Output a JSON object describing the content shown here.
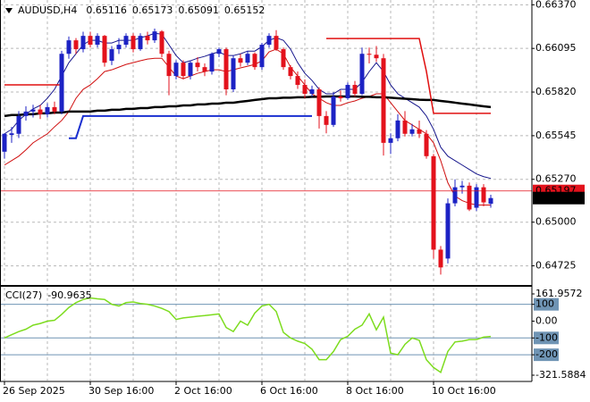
{
  "chart_data": [
    {
      "type": "candlestick",
      "title": "AUDUSD,H4",
      "categories": [
        "26 Sep 2025",
        null,
        null,
        null,
        null,
        null,
        null,
        null,
        null,
        null,
        null,
        null,
        "30 Sep 16:00",
        null,
        null,
        null,
        null,
        null,
        null,
        null,
        null,
        null,
        null,
        null,
        "2 Oct 16:00",
        null,
        null,
        null,
        null,
        null,
        null,
        null,
        null,
        null,
        null,
        null,
        "6 Oct 16:00",
        null,
        null,
        null,
        null,
        null,
        null,
        null,
        null,
        null,
        null,
        null,
        "8 Oct 16:00",
        null,
        null,
        null,
        null,
        null,
        null,
        null,
        null,
        null,
        null,
        null,
        "10 Oct 16:00",
        null,
        null,
        null,
        null,
        null,
        null,
        null,
        null
      ],
      "ohlc": [
        [
          0.65444,
          0.6556,
          0.654,
          0.65557
        ],
        [
          0.6555,
          0.656,
          0.655,
          0.6556
        ],
        [
          0.65557,
          0.657,
          0.6553,
          0.65669
        ],
        [
          0.65669,
          0.6573,
          0.6564,
          0.65697
        ],
        [
          0.65697,
          0.6574,
          0.6566,
          0.6571
        ],
        [
          0.6571,
          0.6574,
          0.6565,
          0.6568
        ],
        [
          0.6568,
          0.6575,
          0.6566,
          0.65725
        ],
        [
          0.65725,
          0.6576,
          0.6568,
          0.65697
        ],
        [
          0.65697,
          0.6608,
          0.6568,
          0.66061
        ],
        [
          0.66061,
          0.6617,
          0.6603,
          0.66146
        ],
        [
          0.66146,
          0.6616,
          0.6606,
          0.6609
        ],
        [
          0.6609,
          0.662,
          0.6607,
          0.66174
        ],
        [
          0.66174,
          0.662,
          0.661,
          0.66118
        ],
        [
          0.66118,
          0.6619,
          0.661,
          0.66174
        ],
        [
          0.66174,
          0.6618,
          0.6598,
          0.66005
        ],
        [
          0.66017,
          0.6611,
          0.6599,
          0.6609
        ],
        [
          0.6609,
          0.6616,
          0.6606,
          0.66118
        ],
        [
          0.66118,
          0.6619,
          0.661,
          0.66174
        ],
        [
          0.66174,
          0.6619,
          0.6607,
          0.6609
        ],
        [
          0.6609,
          0.6619,
          0.6608,
          0.66174
        ],
        [
          0.66174,
          0.662,
          0.6612,
          0.66146
        ],
        [
          0.66146,
          0.6622,
          0.6613,
          0.66202
        ],
        [
          0.66202,
          0.6621,
          0.6604,
          0.66061
        ],
        [
          0.66061,
          0.6608,
          0.658,
          0.65921
        ],
        [
          0.65921,
          0.6602,
          0.659,
          0.66005
        ],
        [
          0.66005,
          0.6602,
          0.659,
          0.65921
        ],
        [
          0.65921,
          0.6602,
          0.659,
          0.66005
        ],
        [
          0.66005,
          0.6604,
          0.6595,
          0.65977
        ],
        [
          0.65977,
          0.66,
          0.6592,
          0.65949
        ],
        [
          0.65949,
          0.6607,
          0.6593,
          0.66061
        ],
        [
          0.66061,
          0.661,
          0.6604,
          0.6609
        ],
        [
          0.6609,
          0.661,
          0.658,
          0.65837
        ],
        [
          0.65837,
          0.6605,
          0.6582,
          0.66033
        ],
        [
          0.66033,
          0.6606,
          0.6598,
          0.66005
        ],
        [
          0.66005,
          0.6608,
          0.6599,
          0.66061
        ],
        [
          0.66061,
          0.6607,
          0.6596,
          0.65977
        ],
        [
          0.65977,
          0.6613,
          0.6596,
          0.66118
        ],
        [
          0.66118,
          0.6619,
          0.661,
          0.66174
        ],
        [
          0.66174,
          0.6621,
          0.6608,
          0.6609
        ],
        [
          0.6609,
          0.661,
          0.6596,
          0.65977
        ],
        [
          0.65977,
          0.6599,
          0.659,
          0.65921
        ],
        [
          0.65921,
          0.6595,
          0.6584,
          0.65865
        ],
        [
          0.65865,
          0.659,
          0.6578,
          0.65809
        ],
        [
          0.65809,
          0.6586,
          0.6579,
          0.65837
        ],
        [
          0.65837,
          0.6585,
          0.6559,
          0.65669
        ],
        [
          0.65669,
          0.657,
          0.6556,
          0.65613
        ],
        [
          0.65613,
          0.6582,
          0.656,
          0.65792
        ],
        [
          0.65792,
          0.6583,
          0.6576,
          0.65781
        ],
        [
          0.65781,
          0.6588,
          0.6577,
          0.65865
        ],
        [
          0.65865,
          0.6589,
          0.6579,
          0.65809
        ],
        [
          0.65809,
          0.661,
          0.658,
          0.66061
        ],
        [
          0.66061,
          0.661,
          0.66,
          0.66055
        ],
        [
          0.66055,
          0.6611,
          0.6601,
          0.66033
        ],
        [
          0.66033,
          0.6606,
          0.6542,
          0.655
        ],
        [
          0.655,
          0.6556,
          0.6543,
          0.65529
        ],
        [
          0.65529,
          0.6568,
          0.6551,
          0.65641
        ],
        [
          0.65641,
          0.657,
          0.6554,
          0.65557
        ],
        [
          0.65557,
          0.6562,
          0.6554,
          0.65585
        ],
        [
          0.65585,
          0.6564,
          0.6553,
          0.65557
        ],
        [
          0.65557,
          0.6558,
          0.654,
          0.65416
        ],
        [
          0.65416,
          0.6543,
          0.6477,
          0.64827
        ],
        [
          0.64827,
          0.6485,
          0.6467,
          0.64715
        ],
        [
          0.64771,
          0.6515,
          0.6474,
          0.65119
        ],
        [
          0.65119,
          0.6527,
          0.651,
          0.6522
        ],
        [
          0.6522,
          0.6526,
          0.6518,
          0.6523
        ],
        [
          0.6523,
          0.6525,
          0.6507,
          0.6508
        ],
        [
          0.65091,
          0.6524,
          0.6507,
          0.6522
        ],
        [
          0.6522,
          0.6524,
          0.651,
          0.65125
        ],
        [
          0.65116,
          0.65173,
          0.65091,
          0.65152
        ]
      ],
      "up_color": "#1c22c4",
      "down_color": "#e3121c",
      "series": [
        {
          "color": "#16168c",
          "width": 1,
          "values": [
            0.65557,
            0.65585,
            0.65641,
            0.6568,
            0.65714,
            0.65736,
            0.65781,
            0.65837,
            0.65921,
            0.66005,
            0.66061,
            0.66118,
            0.66146,
            0.66146,
            0.66129,
            0.66129,
            0.66146,
            0.66146,
            0.66146,
            0.66162,
            0.66174,
            0.6619,
            0.66185,
            0.66118,
            0.6605,
            0.66005,
            0.66017,
            0.66033,
            0.66045,
            0.66061,
            0.66073,
            0.6605,
            0.6605,
            0.66061,
            0.66078,
            0.66078,
            0.66106,
            0.66146,
            0.66162,
            0.66146,
            0.6609,
            0.66005,
            0.65938,
            0.65893,
            0.65837,
            0.65809,
            0.65809,
            0.65837,
            0.65837,
            0.65837,
            0.65882,
            0.65949,
            0.66005,
            0.65949,
            0.65865,
            0.65809,
            0.65781,
            0.65753,
            0.65725,
            0.65669,
            0.65585,
            0.65472,
            0.65416,
            0.65388,
            0.6536,
            0.65332,
            0.65304,
            0.65287,
            0.65276
          ]
        },
        {
          "color": "#d01010",
          "width": 1,
          "values": [
            0.6536,
            0.65388,
            0.65416,
            0.65456,
            0.655,
            0.65529,
            0.65557,
            0.65601,
            0.65641,
            0.65697,
            0.65781,
            0.65837,
            0.65865,
            0.65904,
            0.65949,
            0.6596,
            0.65977,
            0.65994,
            0.66005,
            0.66017,
            0.66028,
            0.66033,
            0.66033,
            0.65977,
            0.65921,
            0.65904,
            0.65921,
            0.65938,
            0.65949,
            0.6596,
            0.6596,
            0.65949,
            0.6596,
            0.65972,
            0.65983,
            0.65994,
            0.66017,
            0.66073,
            0.6609,
            0.66061,
            0.65977,
            0.65921,
            0.65865,
            0.65809,
            0.65781,
            0.65753,
            0.65736,
            0.65736,
            0.65753,
            0.65764,
            0.65781,
            0.65792,
            0.65809,
            0.65809,
            0.65753,
            0.65697,
            0.65641,
            0.65613,
            0.65585,
            0.65557,
            0.655,
            0.65388,
            0.65248,
            0.65164,
            0.65136,
            0.65119,
            0.65108,
            0.65108,
            0.65108
          ]
        },
        {
          "color": "#000000",
          "width": 2.5,
          "values": [
            0.65669,
            0.65675,
            0.65675,
            0.6568,
            0.6568,
            0.65686,
            0.65686,
            0.65691,
            0.65691,
            0.65697,
            0.65697,
            0.65697,
            0.65697,
            0.65703,
            0.65703,
            0.65708,
            0.65708,
            0.65714,
            0.65714,
            0.65719,
            0.65719,
            0.65725,
            0.65725,
            0.6573,
            0.6573,
            0.65736,
            0.65736,
            0.65742,
            0.65742,
            0.65747,
            0.65747,
            0.65753,
            0.65753,
            0.65759,
            0.65764,
            0.6577,
            0.65775,
            0.65781,
            0.65781,
            0.65784,
            0.65784,
            0.65787,
            0.65787,
            0.6579,
            0.6579,
            0.65792,
            0.65792,
            0.65792,
            0.65792,
            0.65792,
            0.6579,
            0.6579,
            0.65787,
            0.65787,
            0.65784,
            0.65781,
            0.65778,
            0.65775,
            0.65772,
            0.6577,
            0.6577,
            0.65764,
            0.65759,
            0.65753,
            0.65747,
            0.65742,
            0.65736,
            0.6573,
            0.65725
          ]
        },
        {
          "color": "#e01010",
          "width": 1.5,
          "values": [
            0.65865,
            0.65865,
            0.65865,
            0.65865,
            0.65865,
            0.65865,
            0.65865,
            0.65865,
            0.65865,
            null,
            null,
            null,
            null,
            null,
            null,
            null,
            null,
            null,
            null,
            null,
            null,
            null,
            null,
            null,
            null,
            null,
            null,
            null,
            null,
            null,
            null,
            null,
            null,
            null,
            null,
            null,
            null,
            null,
            null,
            null,
            null,
            null,
            null,
            null,
            null,
            0.66157,
            0.66157,
            0.66157,
            0.66157,
            0.66157,
            0.66157,
            0.66157,
            0.66157,
            0.66157,
            0.66157,
            0.66157,
            0.66157,
            0.66157,
            0.66157,
            0.6595,
            0.65686,
            0.65686,
            0.65686,
            0.65686,
            0.65686,
            0.65686,
            0.65686,
            0.65686,
            0.65686
          ]
        },
        {
          "color": "#1a2fd0",
          "width": 2,
          "values": [
            null,
            null,
            null,
            null,
            null,
            null,
            null,
            null,
            null,
            0.65529,
            0.65529,
            0.65669,
            0.65669,
            0.65669,
            0.65669,
            0.65669,
            0.65669,
            0.65669,
            0.65669,
            0.65669,
            0.65669,
            0.65669,
            0.65669,
            0.65669,
            0.65669,
            0.65669,
            0.65669,
            0.65669,
            0.65669,
            0.65669,
            0.65669,
            0.65669,
            0.65669,
            0.65669,
            0.65669,
            0.65669,
            0.65669,
            0.65669,
            0.65669,
            0.65669,
            0.65669,
            0.65669,
            0.65669,
            0.65669,
            null,
            null,
            null,
            null,
            null,
            null,
            null,
            null,
            null,
            null,
            null,
            null,
            null,
            null,
            null,
            null,
            null,
            null,
            null,
            null,
            null,
            null,
            null,
            null,
            null
          ]
        }
      ],
      "ask": 0.65197,
      "ask_color": "#e3121c",
      "ylim": [
        0.6461,
        0.664
      ],
      "yticks": [
        {
          "value": 0.6637,
          "label": "0.66370"
        },
        0.66095,
        {
          "value": 0.6582,
          "label": "0.65820"
        },
        0.65545,
        {
          "value": 0.6527,
          "label": "0.65270"
        },
        {
          "value": 0.65,
          "label": "0.65000"
        },
        0.64725
      ],
      "grid": true
    },
    {
      "type": "line",
      "title": "CCI(27)",
      "color": "#7ddc1f",
      "values": [
        -100,
        -81,
        -62,
        -48,
        -24,
        -14,
        0,
        5,
        40,
        81,
        110,
        129,
        138,
        133,
        129,
        100,
        90,
        110,
        114,
        105,
        100,
        90,
        76,
        57,
        10,
        19,
        24,
        29,
        33,
        38,
        43,
        -38,
        -62,
        0,
        -24,
        48,
        90,
        100,
        57,
        -67,
        -100,
        -119,
        -133,
        -167,
        -229,
        -229,
        -181,
        -110,
        -90,
        -48,
        -24,
        43,
        -52,
        24,
        -190,
        -200,
        -138,
        -100,
        -114,
        -230,
        -276,
        -305,
        -180,
        -124,
        -119,
        -110,
        -110,
        -95,
        -90.9635
      ],
      "ylim": [
        -321.5884,
        161.9572
      ],
      "yticks": [
        161.9572,
        100,
        {
          "value": 0,
          "label": "0.00"
        },
        -100,
        -200,
        -321.5884
      ],
      "levels": [
        100,
        -100,
        -200
      ],
      "level_color": "#6f94b4"
    }
  ]
}
